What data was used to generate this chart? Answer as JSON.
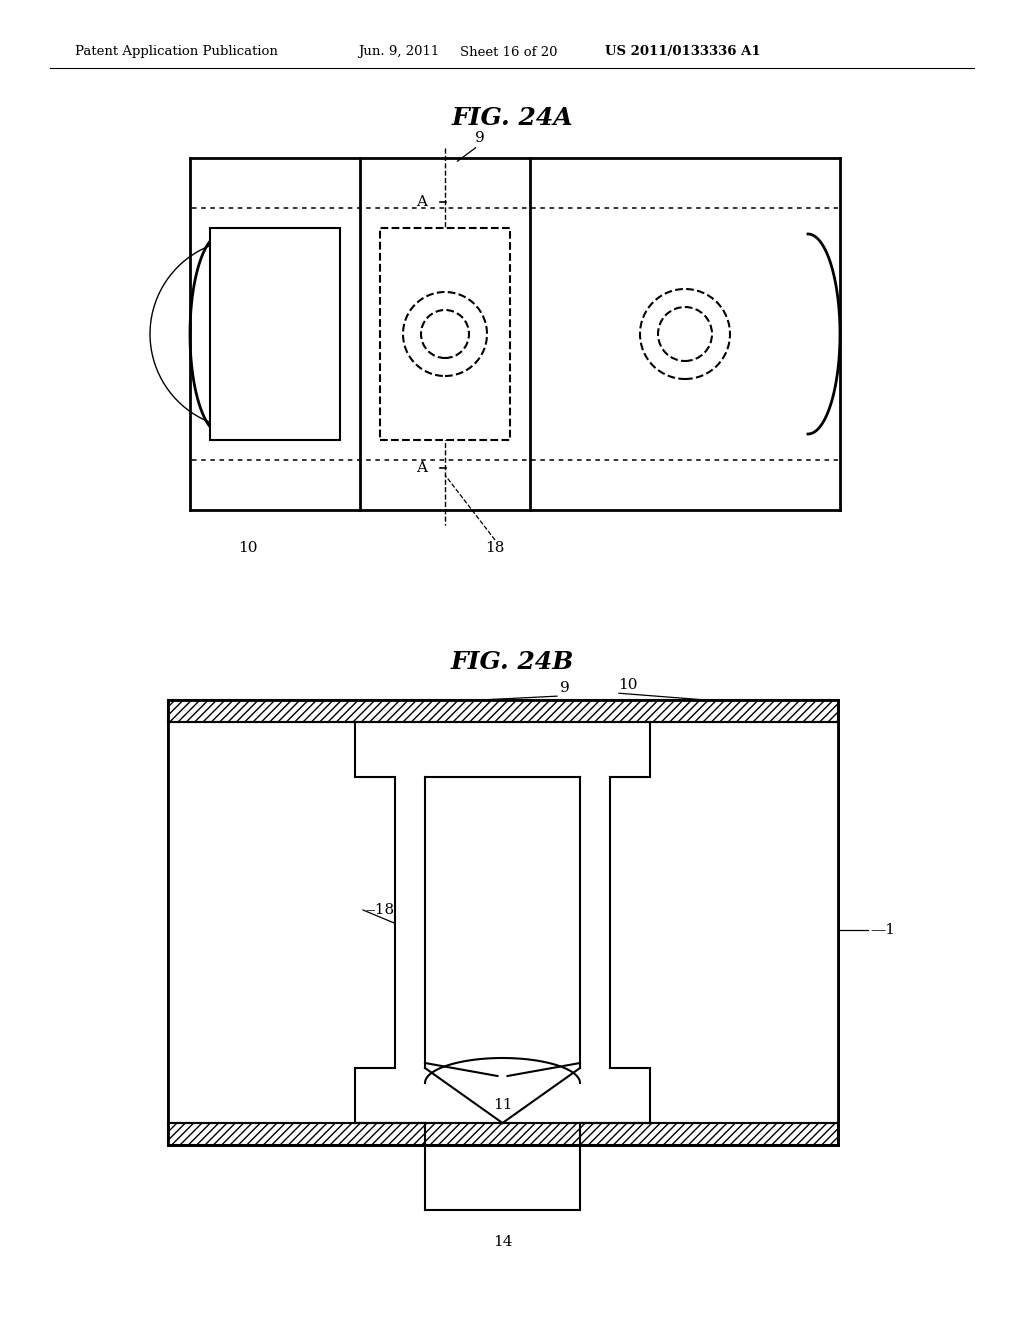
{
  "bg_color": "#ffffff",
  "line_color": "#000000",
  "header_text": "Patent Application Publication",
  "header_date": "Jun. 9, 2011",
  "header_sheet": "Sheet 16 of 20",
  "header_patent": "US 2011/0133336 A1",
  "fig24a_title": "FIG. 24A",
  "fig24b_title": "FIG. 24B"
}
